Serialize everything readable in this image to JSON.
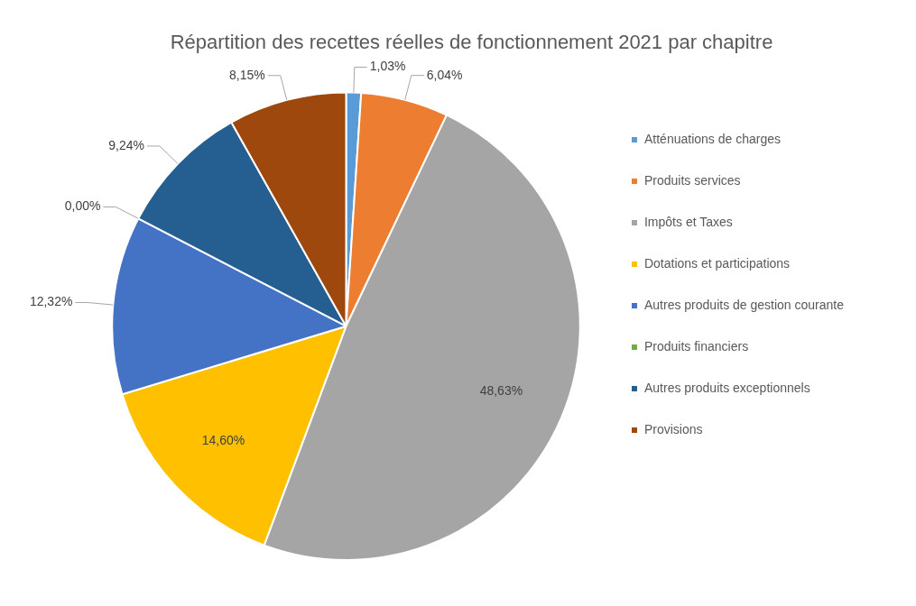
{
  "chart_data": {
    "type": "pie",
    "title": "Répartition des recettes réelles de fonctionnement 2021 par chapitre",
    "categories": [
      "Atténuations de charges",
      "Produits services",
      "Impôts et Taxes",
      "Dotations et participations",
      "Autres produits de gestion courante",
      "Produits financiers",
      "Autres produits exceptionnels",
      "Provisions"
    ],
    "values": [
      1.03,
      6.04,
      48.63,
      14.6,
      12.32,
      0.0,
      9.24,
      8.15
    ],
    "value_labels": [
      "1,03%",
      "6,04%",
      "48,63%",
      "14,60%",
      "12,32%",
      "0,00%",
      "9,24%",
      "8,15%"
    ],
    "colors": [
      "#5b9bd5",
      "#ed7d31",
      "#a5a5a5",
      "#ffc000",
      "#4472c4",
      "#70ad47",
      "#255e91",
      "#9e480e"
    ],
    "legend": "right"
  }
}
